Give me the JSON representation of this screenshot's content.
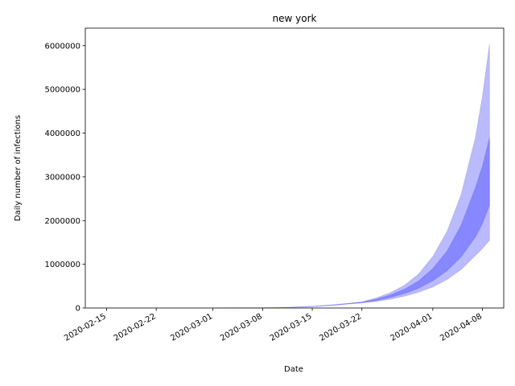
{
  "chart_data": {
    "type": "area",
    "title": "new york",
    "xlabel": "Date",
    "ylabel": "Daily number of infections",
    "x_tick_labels": [
      "2020-02-15",
      "2020-02-22",
      "2020-03-01",
      "2020-03-08",
      "2020-03-15",
      "2020-03-22",
      "2020-04-01",
      "2020-04-08"
    ],
    "y_tick_labels": [
      "0",
      "1000000",
      "2000000",
      "3000000",
      "4000000",
      "5000000",
      "6000000"
    ],
    "y_ticks": [
      0,
      1000000,
      2000000,
      3000000,
      4000000,
      5000000,
      6000000
    ],
    "ylim": [
      0,
      6400000
    ],
    "xlim": [
      "2020-02-12",
      "2020-04-11"
    ],
    "grid": false,
    "band_color": "#0000ff",
    "x": [
      "2020-03-01",
      "2020-03-05",
      "2020-03-08",
      "2020-03-12",
      "2020-03-15",
      "2020-03-18",
      "2020-03-20",
      "2020-03-22",
      "2020-03-24",
      "2020-03-26",
      "2020-03-28",
      "2020-03-30",
      "2020-04-01",
      "2020-04-03",
      "2020-04-05",
      "2020-04-07",
      "2020-04-08",
      "2020-04-09"
    ],
    "series": [
      {
        "lower": [
          0,
          1000,
          3000,
          12000,
          30000,
          60000,
          90000,
          115000,
          150000,
          200000,
          270000,
          360000,
          480000,
          650000,
          880000,
          1200000,
          1360000,
          1550000
        ],
        "upper": [
          0,
          2000,
          5000,
          18000,
          40000,
          75000,
          105000,
          140000,
          230000,
          350000,
          520000,
          780000,
          1180000,
          1750000,
          2600000,
          3900000,
          4850000,
          6050000
        ],
        "opacity": 0.27
      },
      {
        "lower": [
          0,
          1000,
          4000,
          14000,
          33000,
          65000,
          95000,
          125000,
          170000,
          240000,
          330000,
          450000,
          620000,
          850000,
          1170000,
          1620000,
          1930000,
          2350000
        ],
        "upper": [
          0,
          1500,
          4500,
          16000,
          37000,
          70000,
          100000,
          135000,
          200000,
          300000,
          430000,
          620000,
          900000,
          1300000,
          1900000,
          2750000,
          3250000,
          3900000
        ],
        "opacity": 0.27
      }
    ]
  }
}
